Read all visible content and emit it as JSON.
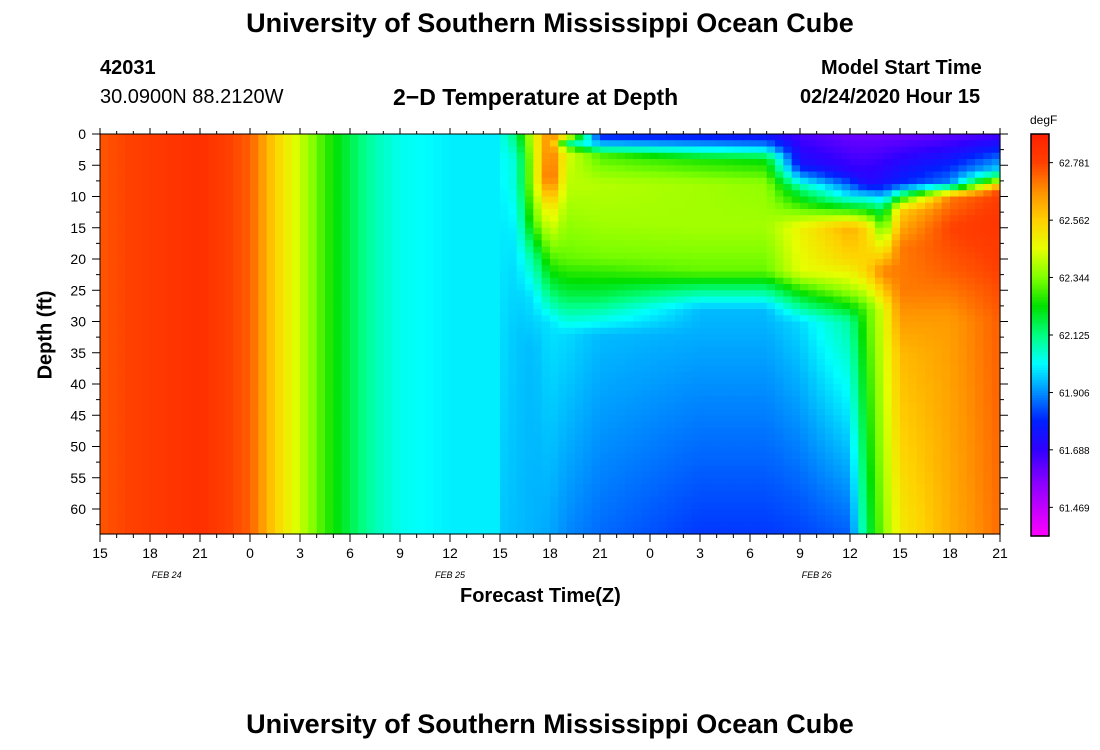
{
  "header": {
    "title": "University of Southern Mississippi Ocean Cube",
    "station_id": "42031",
    "location": "30.0900N 88.2120W",
    "plot_title": "2−D Temperature at Depth",
    "model_label": "Model Start Time",
    "model_start": "02/24/2020 Hour 15"
  },
  "footer": {
    "title": "University of Southern Mississippi Ocean Cube"
  },
  "chart_data": {
    "type": "heatmap",
    "title": "2−D Temperature at Depth",
    "xlabel": "Forecast Time(Z)",
    "ylabel": "Depth (ft)",
    "x_tick_labels": [
      "15",
      "18",
      "21",
      "0",
      "3",
      "6",
      "9",
      "12",
      "15",
      "18",
      "21",
      "0",
      "3",
      "6",
      "9",
      "12",
      "15",
      "18",
      "21"
    ],
    "x_hours_from_start": [
      0,
      3,
      6,
      9,
      12,
      15,
      18,
      21,
      24,
      27,
      30,
      33,
      36,
      39,
      42,
      45,
      48,
      51,
      54
    ],
    "date_labels": [
      {
        "label": "FEB  24",
        "hour": 4
      },
      {
        "label": "FEB  25",
        "hour": 21
      },
      {
        "label": "FEB  26",
        "hour": 43
      }
    ],
    "y_ticks": [
      0,
      5,
      10,
      15,
      20,
      25,
      30,
      35,
      40,
      45,
      50,
      55,
      60
    ],
    "ylim": [
      0,
      64
    ],
    "y_inverted": true,
    "colorbar": {
      "unit": "degF",
      "tick_labels": [
        "62.781",
        "62.562",
        "62.344",
        "62.125",
        "61.906",
        "61.688",
        "61.469"
      ],
      "min": 61.36,
      "max": 62.89,
      "colors": [
        "#ff00ff",
        "#c000ff",
        "#8000ff",
        "#3000ff",
        "#0020ff",
        "#0090ff",
        "#00ffff",
        "#00ff80",
        "#00e000",
        "#80ff00",
        "#e6ff00",
        "#ffd000",
        "#ff9000",
        "#ff4000",
        "#ff2000"
      ]
    },
    "surface_columns": [
      {
        "hour": 0,
        "temp": 62.75
      },
      {
        "hour": 3,
        "temp": 62.8
      },
      {
        "hour": 6,
        "temp": 62.84
      },
      {
        "hour": 9,
        "temp": 62.74
      },
      {
        "hour": 10.5,
        "temp": 62.56
      },
      {
        "hour": 12,
        "temp": 62.42
      },
      {
        "hour": 13.5,
        "temp": 62.28
      },
      {
        "hour": 15,
        "temp": 62.17
      },
      {
        "hour": 16.5,
        "temp": 62.08
      },
      {
        "hour": 18,
        "temp": 62.03
      },
      {
        "hour": 21,
        "temp": 62.0
      }
    ],
    "profiles": [
      {
        "hour": 24,
        "depth": [
          0,
          10,
          25,
          40,
          64
        ],
        "temp": [
          62.02,
          62.0,
          61.99,
          61.98,
          61.96
        ]
      },
      {
        "hour": 25,
        "depth": [
          0,
          4,
          8,
          16,
          22,
          32,
          64
        ],
        "temp": [
          62.15,
          62.05,
          62.05,
          62.0,
          61.98,
          61.96,
          61.95
        ]
      },
      {
        "hour": 26,
        "depth": [
          0,
          3,
          8,
          14,
          20,
          26,
          34,
          64
        ],
        "temp": [
          62.45,
          62.42,
          62.4,
          62.3,
          62.1,
          61.99,
          61.95,
          61.94
        ]
      },
      {
        "hour": 27,
        "depth": [
          0,
          2,
          7,
          12,
          18,
          25,
          30,
          64
        ],
        "temp": [
          62.7,
          62.72,
          62.78,
          62.52,
          62.35,
          62.15,
          61.99,
          61.93
        ]
      },
      {
        "hour": 28,
        "depth": [
          0,
          1.5,
          3,
          6,
          12,
          20,
          26,
          32,
          64
        ],
        "temp": [
          62.6,
          62.15,
          62.45,
          62.42,
          62.38,
          62.32,
          62.17,
          61.98,
          61.9
        ]
      },
      {
        "hour": 30,
        "depth": [
          0,
          2,
          3.5,
          8,
          14,
          20,
          26,
          32,
          64
        ],
        "temp": [
          61.75,
          62.0,
          62.3,
          62.4,
          62.38,
          62.33,
          62.17,
          61.95,
          61.87
        ]
      },
      {
        "hour": 36,
        "depth": [
          0,
          2,
          4,
          8,
          15,
          22,
          25,
          28,
          64
        ],
        "temp": [
          61.75,
          61.95,
          62.25,
          62.38,
          62.38,
          62.32,
          62.12,
          61.95,
          61.82
        ]
      },
      {
        "hour": 40,
        "depth": [
          0,
          2,
          4,
          8,
          15,
          22,
          25,
          28,
          64
        ],
        "temp": [
          61.72,
          61.92,
          62.22,
          62.36,
          62.38,
          62.32,
          62.12,
          61.95,
          61.82
        ]
      },
      {
        "hour": 42,
        "depth": [
          0,
          5,
          9,
          15,
          22,
          26,
          30,
          64
        ],
        "temp": [
          61.65,
          61.75,
          62.15,
          62.48,
          62.45,
          62.2,
          61.98,
          61.83
        ]
      },
      {
        "hour": 45,
        "depth": [
          0,
          6,
          10,
          15,
          20,
          25,
          30,
          64
        ],
        "temp": [
          61.6,
          61.7,
          62.0,
          62.62,
          62.55,
          62.38,
          62.1,
          61.86
        ]
      },
      {
        "hour": 46,
        "depth": [
          0,
          8,
          10,
          15,
          22,
          28,
          64
        ],
        "temp": [
          61.6,
          61.72,
          62.0,
          62.55,
          62.55,
          62.3,
          62.15
        ]
      },
      {
        "hour": 47,
        "depth": [
          0,
          8,
          12,
          16,
          22,
          28,
          64
        ],
        "temp": [
          61.6,
          61.75,
          62.15,
          62.35,
          62.7,
          62.45,
          62.35
        ]
      },
      {
        "hour": 48,
        "depth": [
          0,
          8,
          12,
          18,
          25,
          35,
          64
        ],
        "temp": [
          61.6,
          61.8,
          62.55,
          62.7,
          62.7,
          62.6,
          62.5
        ]
      },
      {
        "hour": 51,
        "depth": [
          0,
          8,
          10,
          15,
          22,
          30,
          64
        ],
        "temp": [
          61.62,
          61.9,
          62.7,
          62.78,
          62.74,
          62.65,
          62.62
        ]
      },
      {
        "hour": 54,
        "depth": [
          0,
          6,
          9,
          14,
          22,
          30,
          64
        ],
        "temp": [
          61.65,
          62.0,
          62.78,
          62.82,
          62.78,
          62.74,
          62.72
        ]
      }
    ]
  }
}
